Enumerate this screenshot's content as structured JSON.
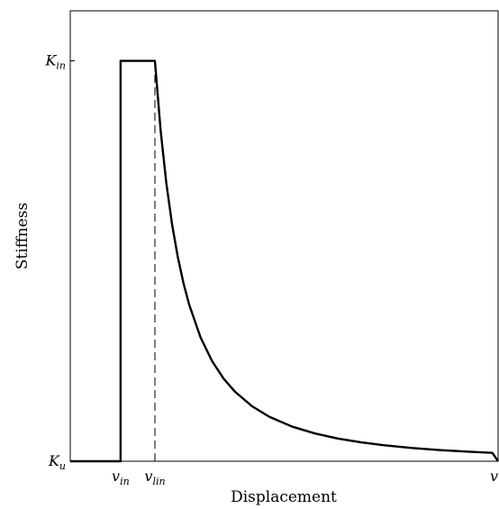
{
  "chart_data": {
    "type": "line",
    "title": "",
    "xlabel": "Displacement",
    "ylabel": "Stiffness",
    "x_ticks": [
      {
        "id": "v_in",
        "base": "v",
        "sub": "in",
        "value": 0.2
      },
      {
        "id": "v_lin",
        "base": "v",
        "sub": "lin",
        "value": 0.5
      },
      {
        "id": "v_end",
        "base": "v",
        "sub": "",
        "value": 3.5
      }
    ],
    "y_ticks": [
      {
        "id": "K_u",
        "base": "K",
        "sub": "u",
        "value": 0
      },
      {
        "id": "K_in",
        "base": "K",
        "sub": "in",
        "value": 1
      }
    ],
    "xlim": [
      -0.24,
      3.5
    ],
    "ylim": [
      0,
      1.125
    ],
    "grid": false,
    "series": [
      {
        "style": "solid",
        "color": "#000000",
        "points": [
          [
            -0.24,
            0
          ],
          [
            0.2,
            0
          ],
          [
            0.2,
            1
          ],
          [
            0.5,
            1
          ],
          [
            0.55,
            0.8264
          ],
          [
            0.6,
            0.6944
          ],
          [
            0.65,
            0.5917
          ],
          [
            0.7,
            0.5102
          ],
          [
            0.75,
            0.4444
          ],
          [
            0.8,
            0.3906
          ],
          [
            0.9,
            0.3086
          ],
          [
            1.0,
            0.25
          ],
          [
            1.1,
            0.2066
          ],
          [
            1.2,
            0.1736
          ],
          [
            1.35,
            0.1372
          ],
          [
            1.5,
            0.1111
          ],
          [
            1.7,
            0.0865
          ],
          [
            1.9,
            0.0693
          ],
          [
            2.1,
            0.0567
          ],
          [
            2.3,
            0.0473
          ],
          [
            2.5,
            0.04
          ],
          [
            2.75,
            0.0331
          ],
          [
            3.0,
            0.0278
          ],
          [
            3.25,
            0.0237
          ],
          [
            3.45,
            0.021
          ],
          [
            3.5,
            0
          ]
        ]
      },
      {
        "style": "dashed",
        "color": "#000000",
        "points": [
          [
            0.5,
            0
          ],
          [
            0.5,
            1
          ]
        ]
      }
    ]
  }
}
